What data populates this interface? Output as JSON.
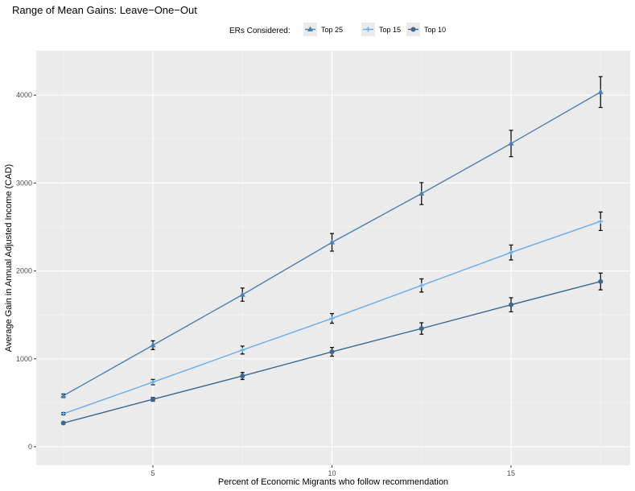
{
  "chart_data": {
    "type": "line",
    "title": "Range of Mean Gains: Leave−One−Out",
    "xlabel": "Percent of Economic Migrants who follow recommendation",
    "ylabel": "Average Gain in Annual Adjusted Income (CAD)",
    "legend_title": "ERs Considered:",
    "legend_position": "top",
    "grid": true,
    "xlim": [
      1.7,
      18.3
    ],
    "ylim": [
      -200,
      4400
    ],
    "x_ticks": [
      5,
      10,
      15
    ],
    "y_ticks": [
      0,
      1000,
      2000,
      3000,
      4000
    ],
    "x": [
      2.5,
      5,
      7.5,
      10,
      12.5,
      15,
      17.5
    ],
    "series": [
      {
        "name": "Top 25",
        "color": "#4a80b4",
        "marker": "triangle",
        "values": [
          580,
          1155,
          1730,
          2325,
          2880,
          3450,
          4035
        ],
        "error": [
          20,
          50,
          75,
          100,
          125,
          150,
          175
        ]
      },
      {
        "name": "Top 15",
        "color": "#66adeb",
        "marker": "cross",
        "values": [
          375,
          735,
          1100,
          1460,
          1835,
          2210,
          2565
        ],
        "error": [
          12,
          30,
          45,
          55,
          75,
          85,
          105
        ]
      },
      {
        "name": "Top 10",
        "color": "#3a6890",
        "marker": "circle",
        "values": [
          270,
          540,
          805,
          1080,
          1345,
          1615,
          1880
        ],
        "error": [
          10,
          22,
          40,
          50,
          65,
          80,
          95
        ]
      }
    ]
  }
}
